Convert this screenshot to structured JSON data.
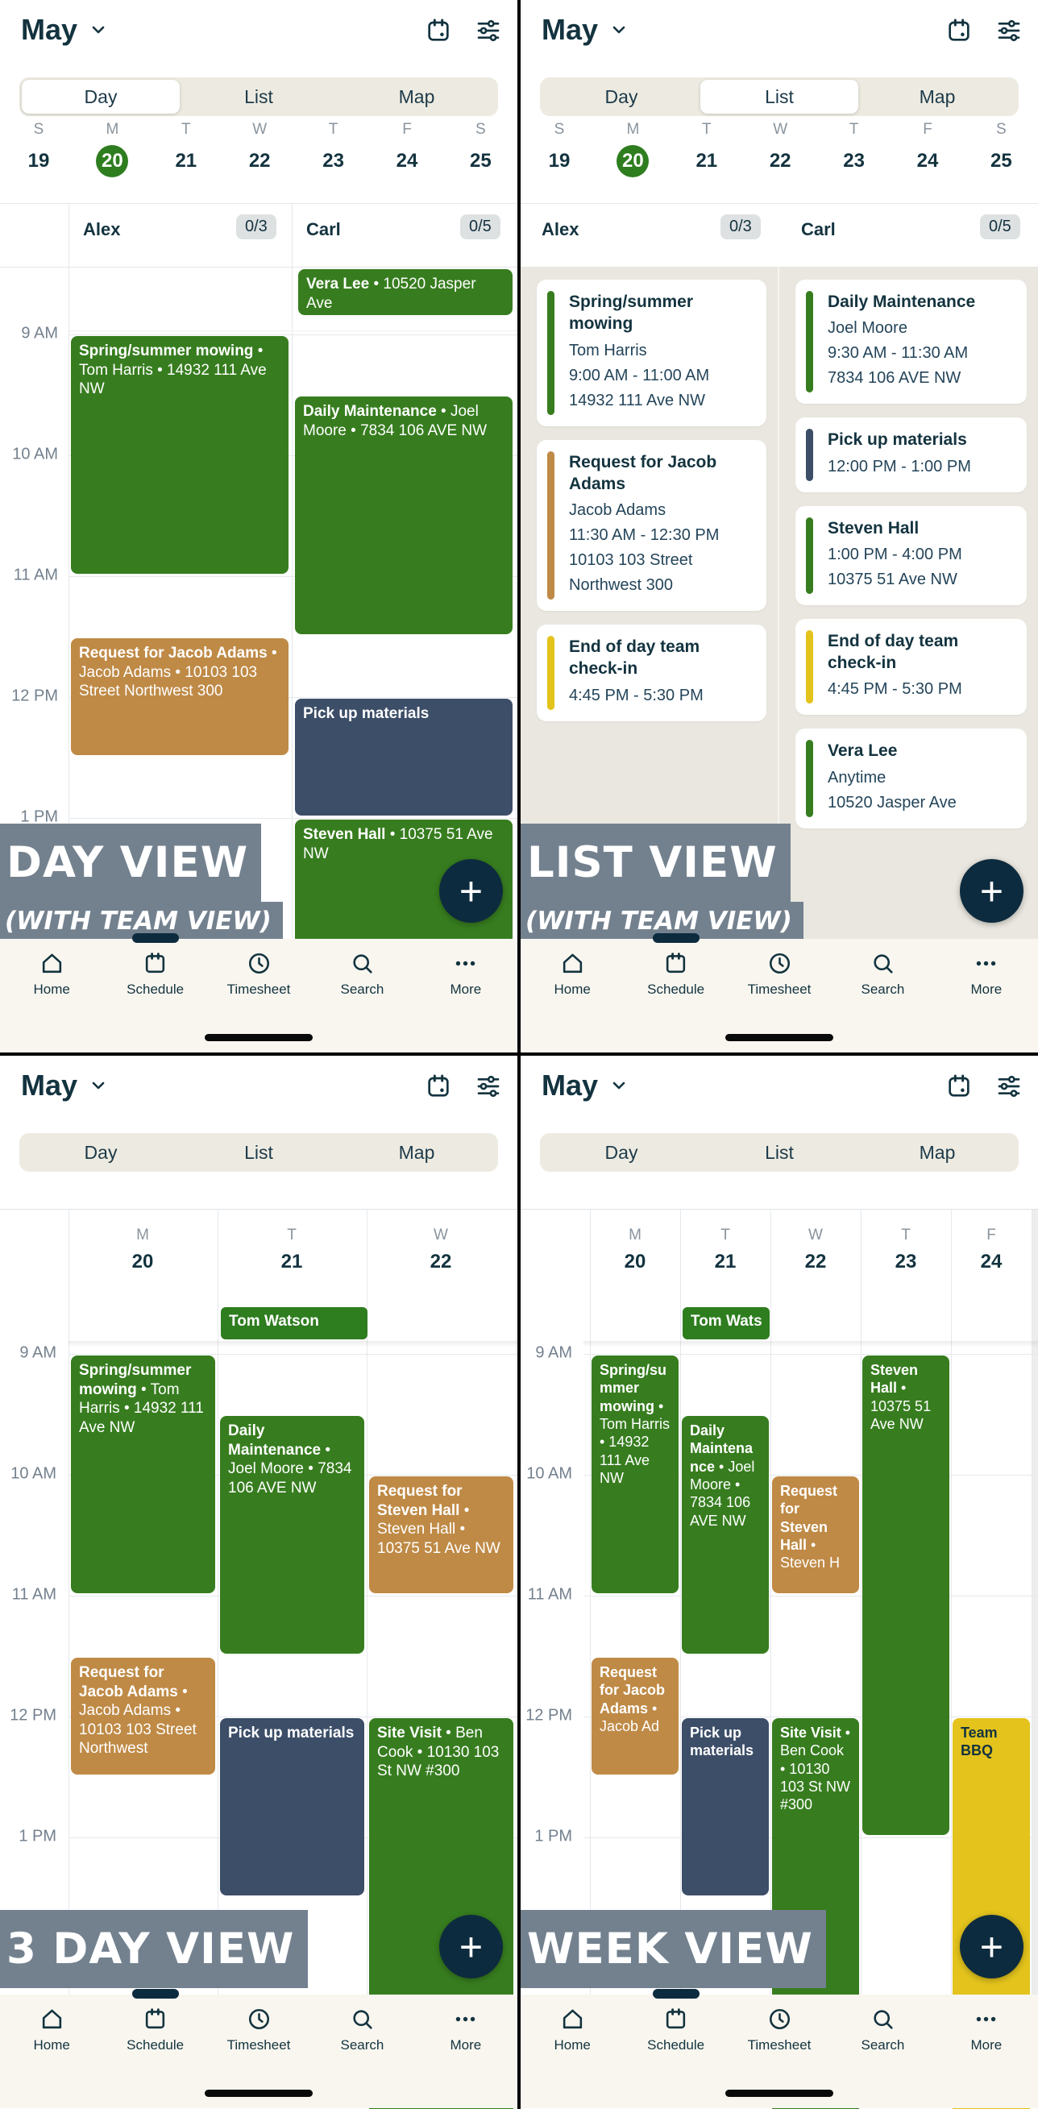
{
  "app": {
    "month_label": "May",
    "tabs": [
      "Day",
      "List",
      "Map"
    ],
    "header_icons": [
      {
        "name": "calendar-picker-icon",
        "icon": "calendar-icon"
      },
      {
        "name": "filter-button",
        "icon": "filter-icon"
      }
    ],
    "week_strip": {
      "letters": [
        "S",
        "M",
        "T",
        "W",
        "T",
        "F",
        "S"
      ],
      "dates": [
        "19",
        "20",
        "21",
        "22",
        "23",
        "24",
        "25"
      ],
      "selected_index": 1
    },
    "bottom_nav": {
      "items": [
        {
          "icon": "home-icon",
          "label": "Home"
        },
        {
          "icon": "schedule-icon",
          "label": "Schedule"
        },
        {
          "icon": "clock-icon",
          "label": "Timesheet"
        },
        {
          "icon": "search-icon",
          "label": "Search"
        },
        {
          "icon": "more-icon",
          "label": "More"
        }
      ],
      "active": "Schedule"
    },
    "fab_label": "+",
    "time_labels": [
      "9 AM",
      "10 AM",
      "11 AM",
      "12 PM",
      "1 PM"
    ],
    "colors": {
      "green": "#377d1f",
      "brown": "#bf8a46",
      "navy": "#3c4e68",
      "yellow": "#e3c31c",
      "slate_overlay": "#73818f",
      "fab": "#0d2b3e",
      "text_navy": "#13333f",
      "badge_bg": "#dee1e2",
      "nav_cream": "#f8f6ef",
      "list_bg": "#e9e7df",
      "grid_line": "#e5e8eb",
      "time_label": "#73808e",
      "selected_date": "#2e7d1f"
    }
  },
  "panels": [
    {
      "name": "day-view",
      "selected_tab": "Day",
      "overlay": {
        "line1": "DAY VIEW",
        "line2": "(WITH TEAM VIEW)"
      },
      "team": [
        {
          "name": "Alex",
          "badge": "0/3"
        },
        {
          "name": "Carl",
          "badge": "0/5"
        }
      ],
      "allday_events": [
        {
          "col": 1,
          "title": "Vera Lee",
          "details": " • 10520 Jasper Ave",
          "color": "green"
        }
      ],
      "events": [
        {
          "col": 0,
          "start": 9,
          "end": 11,
          "title": "Spring/summer mowing",
          "details": " • Tom Harris • 14932 111 Ave NW",
          "color": "green"
        },
        {
          "col": 0,
          "start": 11.5,
          "end": 12.5,
          "title": "Request for Jacob Adams",
          "details": " • Jacob Adams • 10103 103 Street Northwest 300",
          "color": "brown"
        },
        {
          "col": 1,
          "start": 9.5,
          "end": 11.5,
          "title": "Daily Maintenance",
          "details": " • Joel Moore • 7834 106 AVE NW",
          "color": "green"
        },
        {
          "col": 1,
          "start": 12,
          "end": 13,
          "title": "Pick up materials",
          "details": "",
          "color": "navy"
        },
        {
          "col": 1,
          "start": 13,
          "end": 16,
          "title": "Steven Hall",
          "details": " • 10375 51 Ave NW",
          "color": "green"
        }
      ]
    },
    {
      "name": "list-view",
      "selected_tab": "List",
      "overlay": {
        "line1": "LIST VIEW",
        "line2": "(WITH TEAM VIEW)"
      },
      "team": [
        {
          "name": "Alex",
          "badge": "0/3"
        },
        {
          "name": "Carl",
          "badge": "0/5"
        }
      ],
      "list_columns": [
        {
          "owner": "Alex",
          "cards": [
            {
              "color": "green",
              "title": "Spring/summer mowing",
              "lines": [
                "Tom Harris",
                "9:00 AM - 11:00 AM",
                "14932 111 Ave NW"
              ]
            },
            {
              "color": "brown",
              "title": "Request for Jacob Adams",
              "lines": [
                "Jacob Adams",
                "11:30 AM - 12:30 PM",
                "10103 103 Street Northwest 300"
              ]
            },
            {
              "color": "yellow",
              "title": "End of day team check-in",
              "lines": [
                "4:45 PM - 5:30 PM"
              ]
            }
          ]
        },
        {
          "owner": "Carl",
          "cards": [
            {
              "color": "green",
              "title": "Daily Maintenance",
              "lines": [
                "Joel Moore",
                "9:30 AM - 11:30 AM",
                "7834 106 AVE NW"
              ]
            },
            {
              "color": "navy",
              "title": "Pick up materials",
              "lines": [
                "12:00 PM - 1:00 PM"
              ]
            },
            {
              "color": "green",
              "title": "Steven Hall",
              "lines": [
                "1:00 PM - 4:00 PM",
                "10375 51 Ave NW"
              ]
            },
            {
              "color": "yellow",
              "title": "End of day team check-in",
              "lines": [
                "4:45 PM - 5:30 PM"
              ]
            },
            {
              "color": "green",
              "title": "Vera Lee",
              "lines": [
                "Anytime",
                "10520 Jasper Ave"
              ]
            }
          ]
        }
      ]
    },
    {
      "name": "three-day-view",
      "selected_tab": null,
      "overlay": {
        "line1": "3 DAY VIEW"
      },
      "day_strip": {
        "letters": [
          "M",
          "T",
          "W"
        ],
        "dates": [
          "20",
          "21",
          "22"
        ]
      },
      "allday_banner": {
        "col": 1,
        "label": "Tom Watson"
      },
      "events": [
        {
          "col": 0,
          "start": 9,
          "end": 11,
          "title": "Spring/summer mowing",
          "details": " • Tom Harris • 14932 111 Ave NW",
          "color": "green"
        },
        {
          "col": 0,
          "start": 11.5,
          "end": 12.5,
          "title": "Request for Jacob Adams",
          "details": " • Jacob Adams • 10103 103 Street Northwest",
          "color": "brown"
        },
        {
          "col": 1,
          "start": 9.5,
          "end": 11.5,
          "title": "Daily Maintenance",
          "details": " • Joel Moore • 7834 106 AVE NW",
          "color": "green"
        },
        {
          "col": 1,
          "start": 12,
          "end": 13.5,
          "title": "Pick up materials",
          "details": "",
          "color": "navy"
        },
        {
          "col": 2,
          "start": 10,
          "end": 11,
          "title": "Request for Steven Hall",
          "details": " • Steven Hall • 10375 51 Ave NW",
          "color": "brown"
        },
        {
          "col": 2,
          "start": 12,
          "end": 16,
          "title": "Site Visit",
          "details": " • Ben Cook • 10130 103 St NW #300",
          "color": "green"
        }
      ]
    },
    {
      "name": "week-view",
      "selected_tab": null,
      "overlay": {
        "line1": "WEEK VIEW"
      },
      "day_strip": {
        "letters": [
          "M",
          "T",
          "W",
          "T",
          "F"
        ],
        "dates": [
          "20",
          "21",
          "22",
          "23",
          "24"
        ]
      },
      "allday_banner": {
        "col": 1,
        "label": "Tom Wats"
      },
      "events": [
        {
          "col": 0,
          "start": 9,
          "end": 11,
          "title": "Spring/summer mowing",
          "details": " • Tom Harris • 14932 111 Ave NW",
          "color": "green"
        },
        {
          "col": 0,
          "start": 11.5,
          "end": 12.5,
          "title": "Request for Jacob Adams",
          "details": " • Jacob Ad",
          "color": "brown"
        },
        {
          "col": 1,
          "start": 9.5,
          "end": 11.5,
          "title": "Daily Maintenance",
          "details": " • Joel Moore • 7834 106 AVE NW",
          "color": "green"
        },
        {
          "col": 1,
          "start": 12,
          "end": 13.5,
          "title": "Pick up materials",
          "details": "",
          "color": "navy"
        },
        {
          "col": 2,
          "start": 10,
          "end": 11,
          "title": "Request for Steven Hall",
          "details": " • Steven H",
          "color": "brown"
        },
        {
          "col": 2,
          "start": 12,
          "end": 16,
          "title": "Site Visit",
          "details": " • Ben Cook • 10130 103 St NW #300",
          "color": "green"
        },
        {
          "col": 3,
          "start": 9,
          "end": 13,
          "title": "Steven Hall",
          "details": " • 10375 51 Ave NW",
          "color": "green"
        },
        {
          "col": 4,
          "start": 12,
          "end": 16,
          "title": "Team BBQ",
          "details": "",
          "color": "yellow",
          "dark_text": true
        }
      ]
    }
  ]
}
